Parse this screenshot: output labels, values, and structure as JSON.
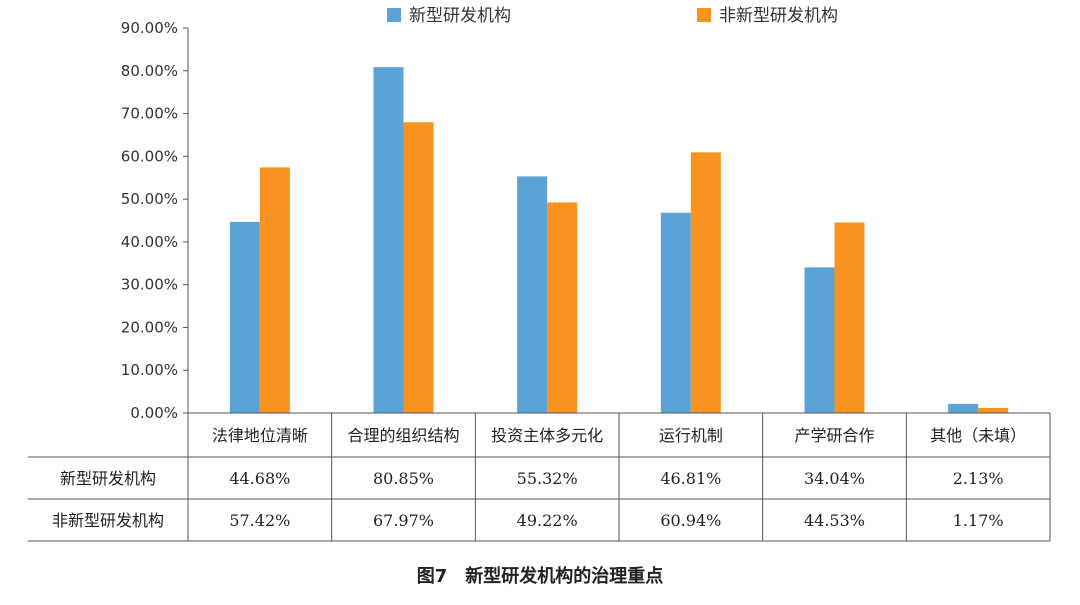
{
  "caption": "图7　新型研发机构的治理重点",
  "chart_data": {
    "type": "bar",
    "categories": [
      "法律地位清晰",
      "合理的组织结构",
      "投资主体多元化",
      "运行机制",
      "产学研合作",
      "其他（未填）"
    ],
    "series": [
      {
        "name": "新型研发机构",
        "color": "#5ba3d6",
        "values": [
          44.68,
          80.85,
          55.32,
          46.81,
          34.04,
          2.13
        ],
        "labels": [
          "44.68%",
          "80.85%",
          "55.32%",
          "46.81%",
          "34.04%",
          "2.13%"
        ]
      },
      {
        "name": "非新型研发机构",
        "color": "#f7931e",
        "values": [
          57.42,
          67.97,
          49.22,
          60.94,
          44.53,
          1.17
        ],
        "labels": [
          "57.42%",
          "67.97%",
          "49.22%",
          "60.94%",
          "44.53%",
          "1.17%"
        ]
      }
    ],
    "ylim": [
      0,
      90
    ],
    "yticks": [
      "0.00%",
      "10.00%",
      "20.00%",
      "30.00%",
      "40.00%",
      "50.00%",
      "60.00%",
      "70.00%",
      "80.00%",
      "90.00%"
    ],
    "legend_position": "top",
    "grid": false,
    "data_table": true
  }
}
